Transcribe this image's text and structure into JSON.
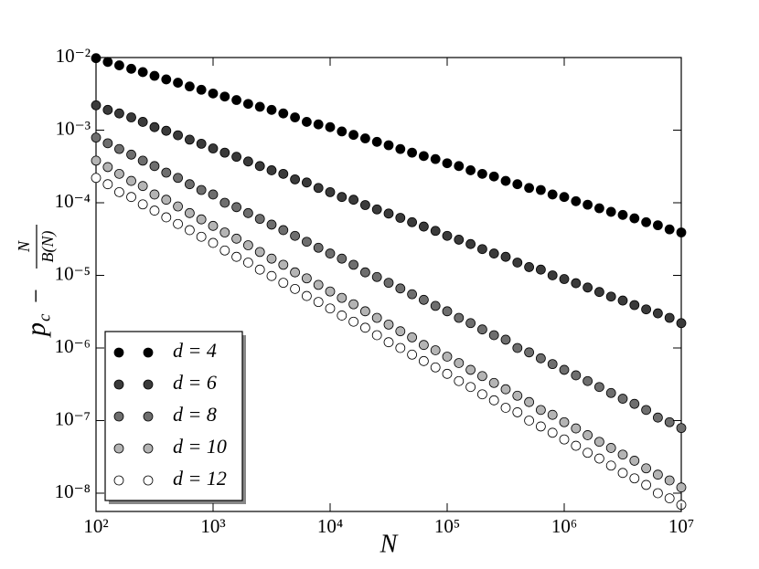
{
  "chart_data": {
    "type": "scatter",
    "x_label": "N",
    "y_label": {
      "base": "p",
      "subscript": "c",
      "operator": "−",
      "numerator": "N",
      "denominator": "B(N)"
    },
    "log_x": true,
    "log_y": true,
    "xlim": [
      100,
      10000000
    ],
    "ylim": [
      5.6e-09,
      0.01
    ],
    "xticks": [
      {
        "value": 100,
        "label": "10²"
      },
      {
        "value": 1000,
        "label": "10³"
      },
      {
        "value": 10000,
        "label": "10⁴"
      },
      {
        "value": 100000,
        "label": "10⁵"
      },
      {
        "value": 1000000,
        "label": "10⁶"
      },
      {
        "value": 10000000,
        "label": "10⁷"
      }
    ],
    "yticks": [
      {
        "value": 1e-08,
        "label": "10⁻⁸"
      },
      {
        "value": 1e-07,
        "label": "10⁻⁷"
      },
      {
        "value": 1e-06,
        "label": "10⁻⁶"
      },
      {
        "value": 1e-05,
        "label": "10⁻⁵"
      },
      {
        "value": 0.0001,
        "label": "10⁻⁴"
      },
      {
        "value": 0.001,
        "label": "10⁻³"
      },
      {
        "value": 0.01,
        "label": "10⁻²"
      }
    ],
    "legend": "lower left",
    "edgecolor": "#000000",
    "x": [
      100,
      126,
      158,
      200,
      251,
      316,
      398,
      501,
      631,
      794,
      1000,
      1259,
      1585,
      1995,
      2512,
      3162,
      3981,
      5012,
      6310,
      7943,
      10000,
      12589,
      15849,
      19953,
      25119,
      31623,
      39811,
      50119,
      63096,
      79433,
      100000,
      125893,
      158489,
      199526,
      251189,
      316228,
      398107,
      501187,
      630957,
      794328,
      1000000,
      1258925,
      1584893,
      1995262,
      2511886,
      3162278,
      3981072,
      5011872,
      6309573,
      7943282,
      10000000
    ],
    "series": [
      {
        "name": "d = 4",
        "color": "#000000",
        "values": [
          0.0098,
          0.0087,
          0.0078,
          0.007,
          0.0063,
          0.0056,
          0.005,
          0.0045,
          0.004,
          0.0036,
          0.0032,
          0.0029,
          0.0026,
          0.0023,
          0.0021,
          0.0019,
          0.0017,
          0.0015,
          0.0013,
          0.0012,
          0.0011,
          0.00096,
          0.00086,
          0.00077,
          0.00069,
          0.00062,
          0.00055,
          0.00049,
          0.00044,
          0.0004,
          0.00035,
          0.00032,
          0.00028,
          0.00025,
          0.00023,
          0.0002,
          0.00018,
          0.00016,
          0.00015,
          0.00013,
          0.00012,
          0.000105,
          9.4e-05,
          8.4e-05,
          7.5e-05,
          6.8e-05,
          6.1e-05,
          5.4e-05,
          4.9e-05,
          4.3e-05,
          3.9e-05
        ]
      },
      {
        "name": "d = 6",
        "color": "#3a3a3a",
        "values": [
          0.0022,
          0.0019,
          0.0017,
          0.0015,
          0.0013,
          0.0011,
          0.00098,
          0.00085,
          0.00074,
          0.00065,
          0.00056,
          0.00049,
          0.00043,
          0.00037,
          0.00032,
          0.00028,
          0.00025,
          0.00021,
          0.00019,
          0.00016,
          0.00014,
          0.00012,
          0.00011,
          9.3e-05,
          8.1e-05,
          7.1e-05,
          6.2e-05,
          5.4e-05,
          4.7e-05,
          4.1e-05,
          3.5e-05,
          3.1e-05,
          2.7e-05,
          2.3e-05,
          2e-05,
          1.8e-05,
          1.5e-05,
          1.3e-05,
          1.2e-05,
          1e-05,
          8.9e-06,
          7.8e-06,
          6.8e-06,
          5.9e-06,
          5.1e-06,
          4.5e-06,
          3.9e-06,
          3.4e-06,
          3e-06,
          2.6e-06,
          2.2e-06
        ]
      },
      {
        "name": "d = 8",
        "color": "#6e6e6e",
        "values": [
          0.00079,
          0.00066,
          0.00055,
          0.00046,
          0.00038,
          0.00032,
          0.00026,
          0.00022,
          0.00018,
          0.00015,
          0.00013,
          0.0001,
          8.7e-05,
          7.2e-05,
          6e-05,
          5e-05,
          4.2e-05,
          3.5e-05,
          2.9e-05,
          2.4e-05,
          2e-05,
          1.7e-05,
          1.4e-05,
          1.1e-05,
          9.5e-06,
          7.9e-06,
          6.6e-06,
          5.5e-06,
          4.6e-06,
          3.8e-06,
          3.2e-06,
          2.6e-06,
          2.2e-06,
          1.8e-06,
          1.5e-06,
          1.3e-06,
          1e-06,
          8.7e-07,
          7.2e-07,
          6e-07,
          5e-07,
          4.2e-07,
          3.5e-07,
          2.9e-07,
          2.4e-07,
          2e-07,
          1.7e-07,
          1.4e-07,
          1.1e-07,
          9.5e-08,
          7.9e-08
        ]
      },
      {
        "name": "d = 10",
        "color": "#b4b4b4",
        "values": [
          0.00038,
          0.00031,
          0.00025,
          0.0002,
          0.00017,
          0.00013,
          0.00011,
          8.9e-05,
          7.2e-05,
          5.9e-05,
          4.8e-05,
          3.9e-05,
          3.2e-05,
          2.6e-05,
          2.1e-05,
          1.7e-05,
          1.4e-05,
          1.1e-05,
          9.1e-06,
          7.4e-06,
          6e-06,
          4.9e-06,
          4e-06,
          3.2e-06,
          2.6e-06,
          2.1e-06,
          1.7e-06,
          1.4e-06,
          1.1e-06,
          9.3e-07,
          7.6e-07,
          6.2e-07,
          5e-07,
          4.1e-07,
          3.3e-07,
          2.7e-07,
          2.2e-07,
          1.8e-07,
          1.4e-07,
          1.2e-07,
          9.5e-08,
          7.8e-08,
          6.3e-08,
          5.1e-08,
          4.2e-08,
          3.4e-08,
          2.8e-08,
          2.2e-08,
          1.8e-08,
          1.5e-08,
          1.2e-08
        ]
      },
      {
        "name": "d = 12",
        "color": "#ffffff",
        "values": [
          0.00022,
          0.00018,
          0.00014,
          0.00012,
          9.5e-05,
          7.8e-05,
          6.3e-05,
          5.1e-05,
          4.2e-05,
          3.4e-05,
          2.8e-05,
          2.2e-05,
          1.8e-05,
          1.5e-05,
          1.2e-05,
          9.8e-06,
          7.9e-06,
          6.5e-06,
          5.2e-06,
          4.3e-06,
          3.5e-06,
          2.8e-06,
          2.3e-06,
          1.9e-06,
          1.5e-06,
          1.2e-06,
          1e-06,
          8.1e-07,
          6.6e-07,
          5.4e-07,
          4.4e-07,
          3.5e-07,
          2.9e-07,
          2.3e-07,
          1.9e-07,
          1.5e-07,
          1.3e-07,
          1e-07,
          8.3e-08,
          6.8e-08,
          5.5e-08,
          4.5e-08,
          3.6e-08,
          3e-08,
          2.4e-08,
          1.9e-08,
          1.6e-08,
          1.3e-08,
          1e-08,
          8.5e-09,
          6.9e-09
        ]
      }
    ]
  }
}
